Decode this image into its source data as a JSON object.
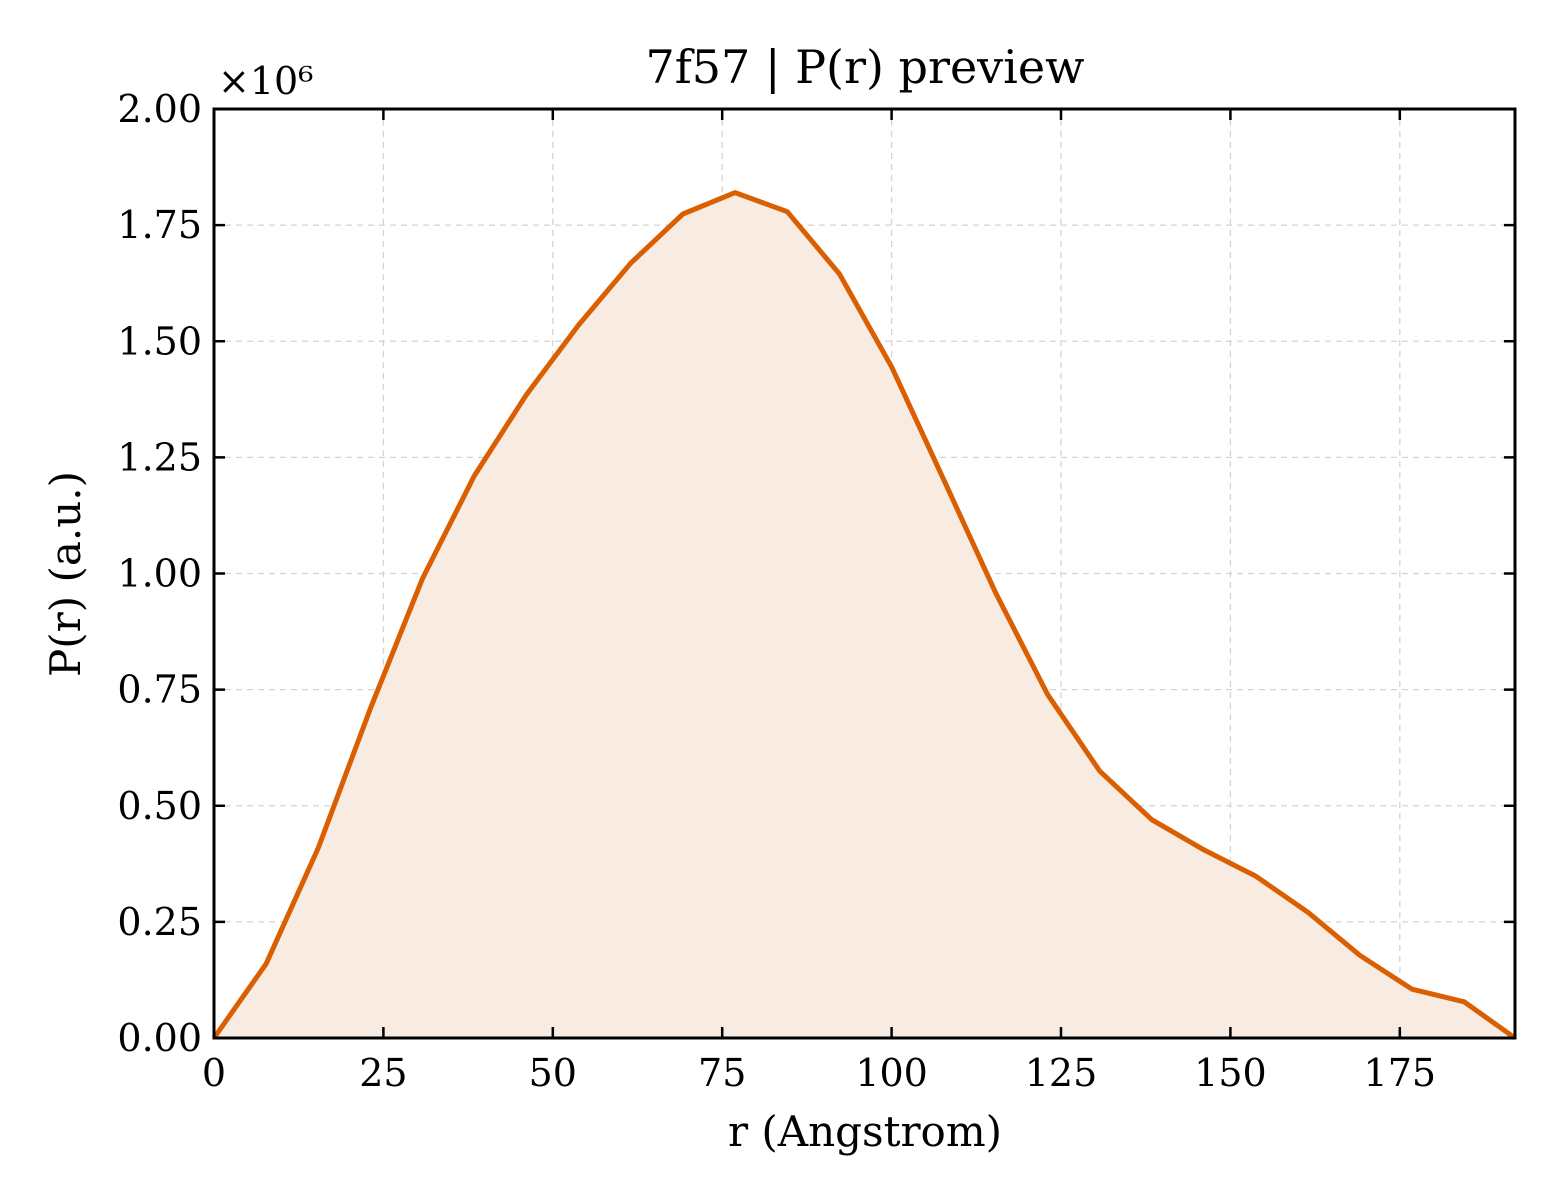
{
  "chart_data": {
    "type": "area",
    "title": "7f57 | P(r) preview",
    "xlabel": "r (Angstrom)",
    "ylabel": "P(r) (a.u.)",
    "y_multiplier_label": "×10⁶",
    "xlim": [
      0,
      192
    ],
    "ylim": [
      0,
      2.0
    ],
    "x_ticks": [
      0,
      25,
      50,
      75,
      100,
      125,
      150,
      175
    ],
    "x_tick_labels": [
      "0",
      "25",
      "50",
      "75",
      "100",
      "125",
      "150",
      "175"
    ],
    "y_ticks": [
      0,
      0.25,
      0.5,
      0.75,
      1.0,
      1.25,
      1.5,
      1.75,
      2.0
    ],
    "y_tick_labels": [
      "0.00",
      "0.25",
      "0.50",
      "0.75",
      "1.00",
      "1.25",
      "1.50",
      "1.75",
      "2.00"
    ],
    "grid": true,
    "series": [
      {
        "x": [
          0,
          7.7,
          15.4,
          23.1,
          30.8,
          38.4,
          46.1,
          53.8,
          61.5,
          69.2,
          76.9,
          84.6,
          92.3,
          100.0,
          107.6,
          115.3,
          123.0,
          130.7,
          138.4,
          146.1,
          153.8,
          161.5,
          169.1,
          176.8,
          184.5,
          192.0
        ],
        "y": [
          0,
          0.16,
          0.41,
          0.71,
          0.99,
          1.21,
          1.385,
          1.535,
          1.668,
          1.774,
          1.82,
          1.779,
          1.645,
          1.445,
          1.205,
          0.96,
          0.74,
          0.575,
          0.47,
          0.405,
          0.348,
          0.27,
          0.178,
          0.105,
          0.078,
          0
        ],
        "line_color": "#d95f02",
        "fill_color": "#f8ebe1"
      }
    ]
  }
}
